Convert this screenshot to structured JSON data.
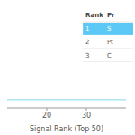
{
  "chart_data": {
    "type": "hline",
    "xlabel": "Signal Rank (Top 50)",
    "xlim": [
      10,
      40
    ],
    "xticks": [
      20,
      30
    ],
    "ylim": [
      0,
      1
    ],
    "tick_labels": "x",
    "values": [
      0.08
    ],
    "color": "#7dd8e8",
    "table": {
      "header": [
        "Rank",
        "Pr"
      ],
      "rows": [
        [
          "1",
          "S"
        ],
        [
          "2",
          "Pt"
        ],
        [
          "3",
          "C"
        ]
      ],
      "highlight": [
        true,
        false,
        false
      ],
      "highlight_color": "#5bc8f5"
    }
  }
}
